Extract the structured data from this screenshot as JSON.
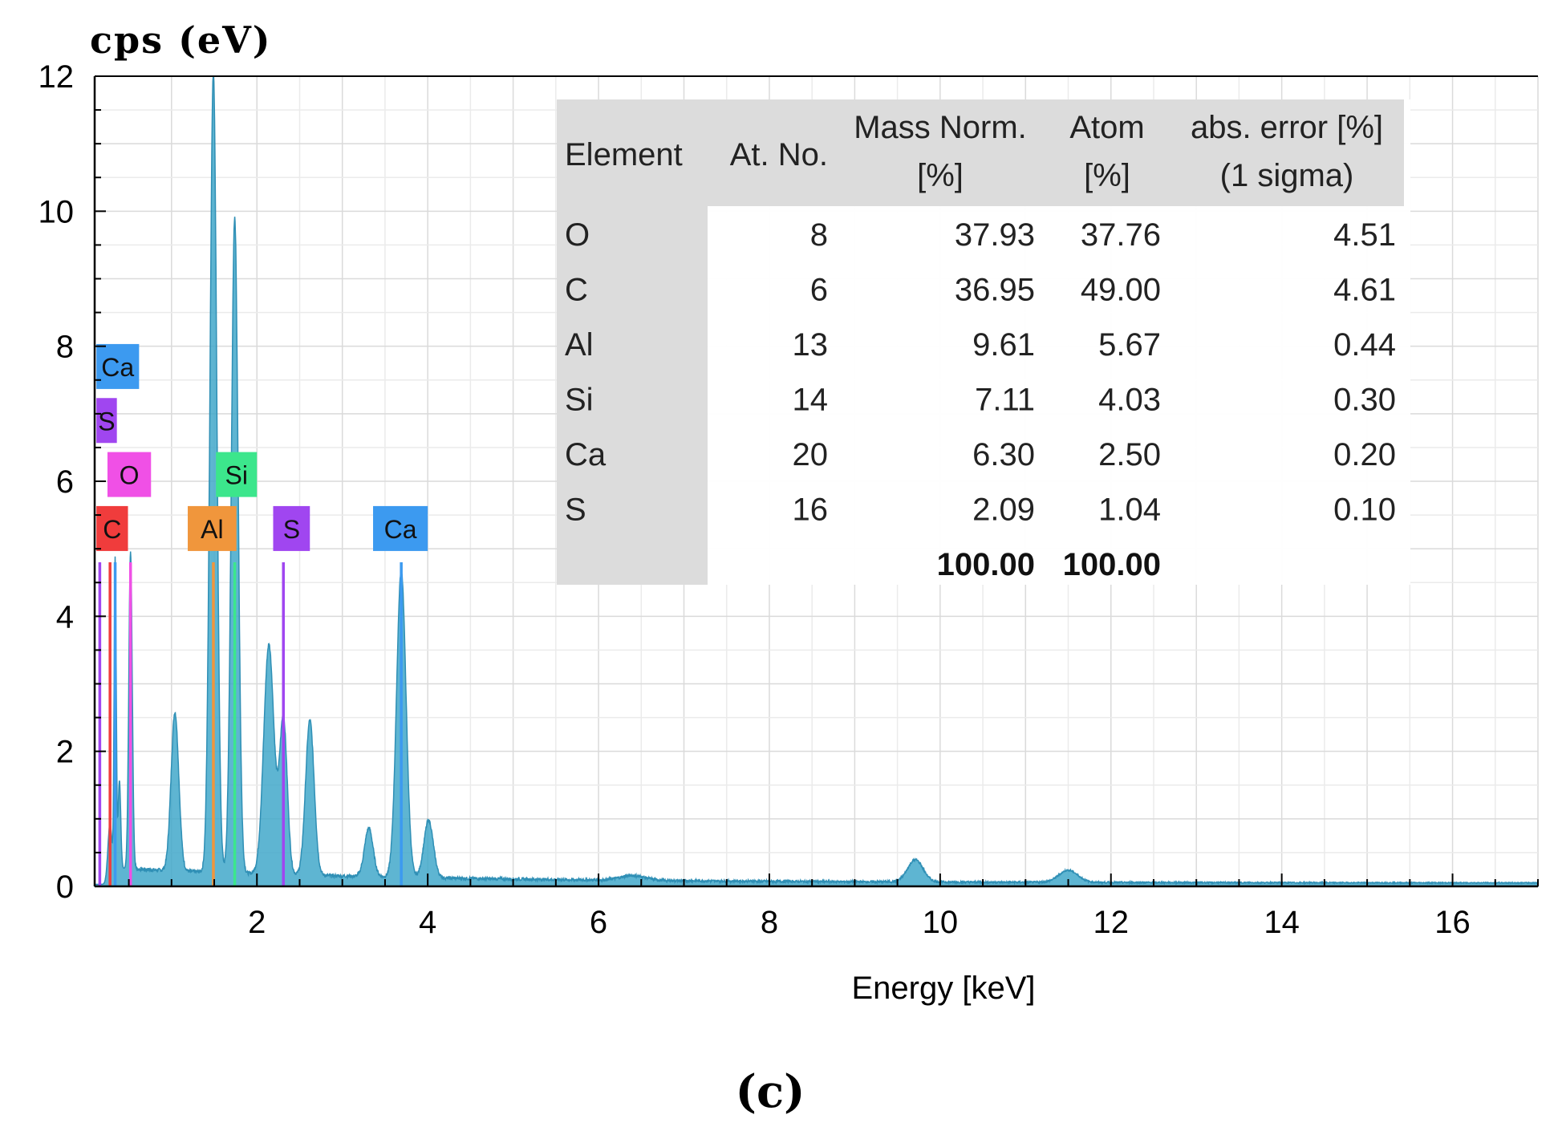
{
  "chart_data": {
    "type": "line",
    "title": "",
    "ylabel": "cps (eV)",
    "xlabel": "Energy [keV]",
    "xlim": [
      0.1,
      17.0
    ],
    "ylim": [
      0,
      12
    ],
    "x_ticks": [
      2,
      4,
      6,
      8,
      10,
      12,
      14,
      16
    ],
    "y_ticks": [
      0,
      2,
      4,
      6,
      8,
      10,
      12
    ],
    "grid": true,
    "panel_label": "(c)",
    "colors": {
      "spectrum": "#3ba5c8",
      "C": "#f03c3c",
      "O": "#f050e6",
      "Al": "#f0963c",
      "Si": "#3ce68c",
      "S": "#a046f0",
      "Ca": "#3c9af0",
      "table_header": "#dcdcdc"
    },
    "background": {
      "baseline": 0.22,
      "decay_from": 0.35,
      "decay_scale": 3.5
    },
    "peaks": [
      {
        "x": 0.28,
        "y": 0.9,
        "w": 0.025
      },
      {
        "x": 0.34,
        "y": 4.8,
        "w": 0.012
      },
      {
        "x": 0.39,
        "y": 1.3,
        "w": 0.015
      },
      {
        "x": 0.52,
        "y": 4.7,
        "w": 0.02
      },
      {
        "x": 1.04,
        "y": 2.35,
        "w": 0.045
      },
      {
        "x": 1.49,
        "y": 11.85,
        "w": 0.04
      },
      {
        "x": 1.74,
        "y": 9.7,
        "w": 0.04
      },
      {
        "x": 2.14,
        "y": 3.4,
        "w": 0.06
      },
      {
        "x": 2.31,
        "y": 2.3,
        "w": 0.045
      },
      {
        "x": 2.62,
        "y": 2.3,
        "w": 0.05
      },
      {
        "x": 3.31,
        "y": 0.72,
        "w": 0.05
      },
      {
        "x": 3.69,
        "y": 4.55,
        "w": 0.055
      },
      {
        "x": 4.01,
        "y": 0.85,
        "w": 0.055
      },
      {
        "x": 6.4,
        "y": 0.07,
        "w": 0.15
      },
      {
        "x": 9.71,
        "y": 0.33,
        "w": 0.09
      },
      {
        "x": 11.5,
        "y": 0.18,
        "w": 0.11
      }
    ],
    "element_lines": [
      {
        "element": "Ca",
        "x": 0.34,
        "height": 4.8
      },
      {
        "element": "S",
        "x": 0.16,
        "height": 4.8
      },
      {
        "element": "C",
        "x": 0.28,
        "height": 4.8
      },
      {
        "element": "O",
        "x": 0.52,
        "height": 4.8
      },
      {
        "element": "Al",
        "x": 1.49,
        "height": 4.8
      },
      {
        "element": "Si",
        "x": 1.74,
        "height": 4.8
      },
      {
        "element": "S",
        "x": 2.31,
        "height": 4.8
      },
      {
        "element": "Ca",
        "x": 3.69,
        "height": 4.8
      }
    ],
    "element_labels": [
      {
        "element": "Ca",
        "text": "Ca",
        "x_left": 0.12,
        "x_right": 0.62,
        "y": 7.7
      },
      {
        "element": "S",
        "text": "S",
        "x_left": 0.12,
        "x_right": 0.36,
        "y": 6.9
      },
      {
        "element": "O",
        "text": "O",
        "x_left": 0.25,
        "x_right": 0.76,
        "y": 6.1
      },
      {
        "element": "Si",
        "text": "Si",
        "x_left": 1.52,
        "x_right": 2.0,
        "y": 6.1
      },
      {
        "element": "C",
        "text": "C",
        "x_left": 0.12,
        "x_right": 0.49,
        "y": 5.3
      },
      {
        "element": "Al",
        "text": "Al",
        "x_left": 1.19,
        "x_right": 1.76,
        "y": 5.3
      },
      {
        "element": "S",
        "text": "S",
        "x_left": 2.19,
        "x_right": 2.62,
        "y": 5.3
      },
      {
        "element": "Ca",
        "text": "Ca",
        "x_left": 3.36,
        "x_right": 4.0,
        "y": 5.3
      }
    ],
    "table": {
      "headers": [
        [
          "Element",
          ""
        ],
        [
          "At. No.",
          ""
        ],
        [
          "Mass Norm.",
          "[%]"
        ],
        [
          "Atom",
          "[%]"
        ],
        [
          "abs. error [%]",
          "(1 sigma)"
        ]
      ],
      "rows": [
        [
          "O",
          "8",
          "37.93",
          "37.76",
          "4.51"
        ],
        [
          "C",
          "6",
          "36.95",
          "49.00",
          "4.61"
        ],
        [
          "Al",
          "13",
          "9.61",
          "5.67",
          "0.44"
        ],
        [
          "Si",
          "14",
          "7.11",
          "4.03",
          "0.30"
        ],
        [
          "Ca",
          "20",
          "6.30",
          "2.50",
          "0.20"
        ],
        [
          "S",
          "16",
          "2.09",
          "1.04",
          "0.10"
        ]
      ],
      "totals": [
        "",
        "",
        "100.00",
        "100.00",
        ""
      ]
    }
  }
}
